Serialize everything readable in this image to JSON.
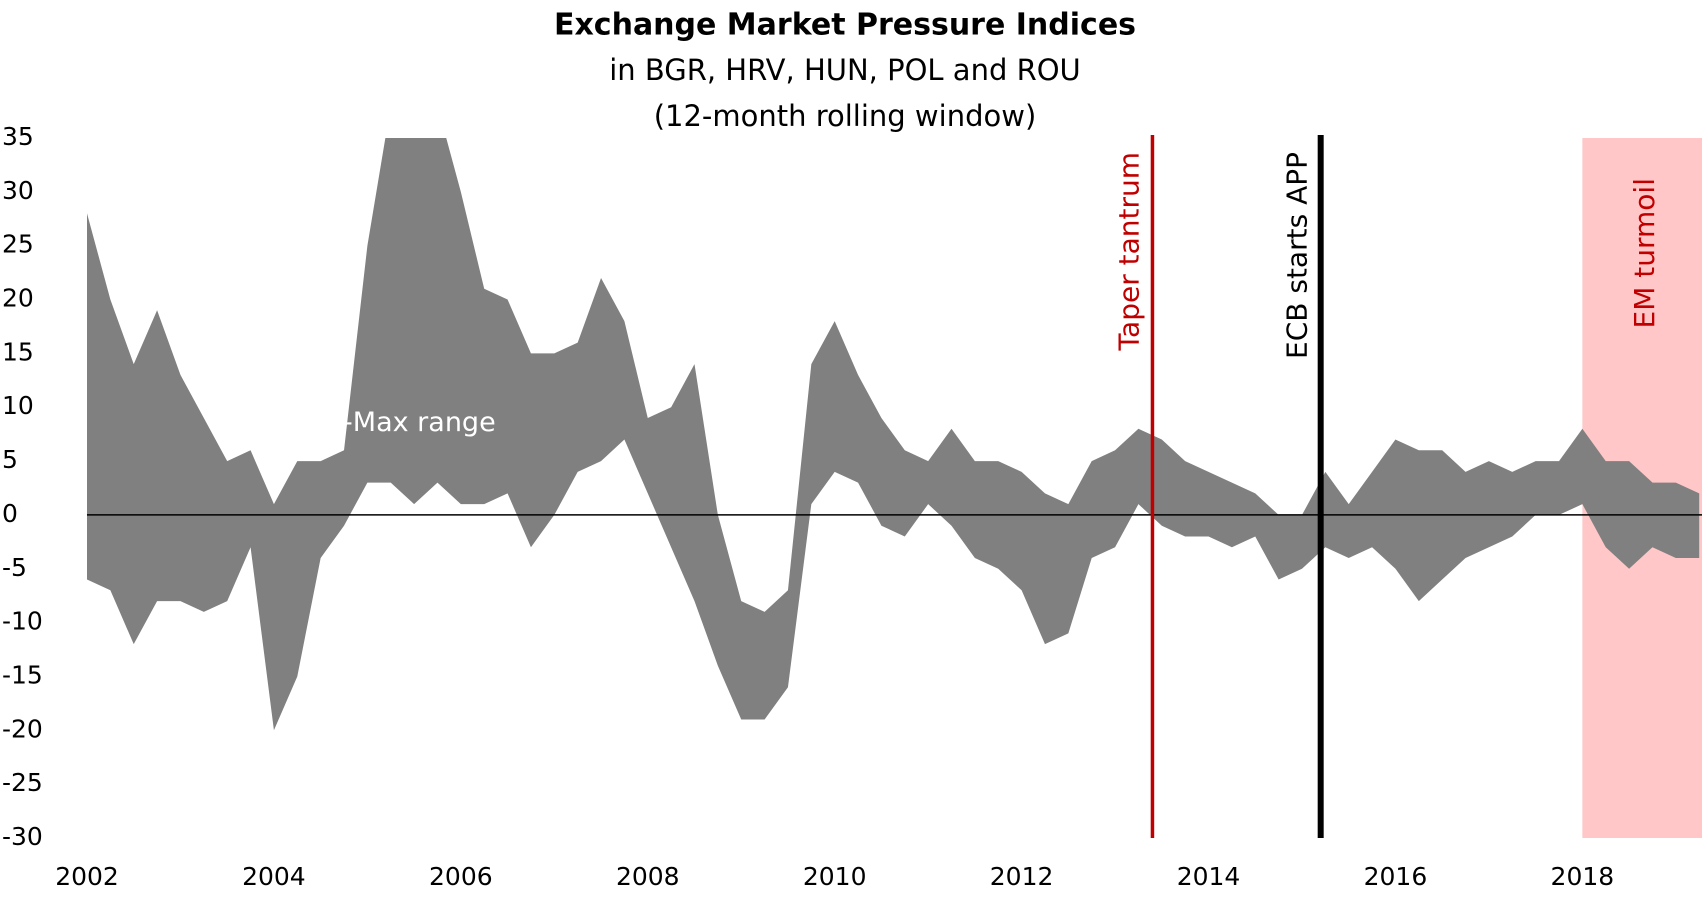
{
  "chart_data": {
    "type": "area_range",
    "title": "Exchange Market Pressure Indices",
    "subtitle": [
      "in BGR, HRV, HUN, POL and ROU",
      "(12-month rolling window)"
    ],
    "x": [
      2002,
      2002.25,
      2002.5,
      2002.75,
      2003,
      2003.25,
      2003.5,
      2003.75,
      2004,
      2004.25,
      2004.5,
      2004.75,
      2005,
      2005.25,
      2005.5,
      2005.75,
      2006,
      2006.25,
      2006.5,
      2006.75,
      2007,
      2007.25,
      2007.5,
      2007.75,
      2008,
      2008.25,
      2008.5,
      2008.75,
      2009,
      2009.25,
      2009.5,
      2009.75,
      2010,
      2010.25,
      2010.5,
      2010.75,
      2011,
      2011.25,
      2011.5,
      2011.75,
      2012,
      2012.25,
      2012.5,
      2012.75,
      2013,
      2013.25,
      2013.5,
      2013.75,
      2014,
      2014.25,
      2014.5,
      2014.75,
      2015,
      2015.25,
      2015.5,
      2015.75,
      2016,
      2016.25,
      2016.5,
      2016.75,
      2017,
      2017.25,
      2017.5,
      2017.75,
      2018,
      2018.25,
      2018.5,
      2018.75,
      2019,
      2019.25
    ],
    "series": [
      {
        "name": "Min-Max range",
        "color": "#808080",
        "upper": [
          28,
          20,
          14,
          19,
          13,
          9,
          5,
          6,
          1,
          5,
          5,
          6,
          25,
          38,
          38,
          38,
          30,
          21,
          20,
          15,
          15,
          16,
          22,
          18,
          9,
          10,
          14,
          0,
          -8,
          -9,
          -7,
          14,
          18,
          13,
          9,
          6,
          5,
          8,
          5,
          5,
          4,
          2,
          1,
          5,
          6,
          8,
          7,
          5,
          4,
          3,
          2,
          0,
          0,
          4,
          1,
          4,
          7,
          6,
          6,
          4,
          5,
          4,
          5,
          5,
          8,
          5,
          5,
          3,
          3,
          2
        ],
        "lower": [
          -6,
          -7,
          -12,
          -8,
          -8,
          -9,
          -8,
          -3,
          -20,
          -15,
          -4,
          -1,
          3,
          3,
          1,
          3,
          1,
          1,
          2,
          -3,
          0,
          4,
          5,
          7,
          2,
          -3,
          -8,
          -14,
          -19,
          -19,
          -16,
          1,
          4,
          3,
          -1,
          -2,
          1,
          -1,
          -4,
          -5,
          -7,
          -12,
          -11,
          -4,
          -3,
          1,
          -1,
          -2,
          -2,
          -3,
          -2,
          -6,
          -5,
          -3,
          -4,
          -3,
          -5,
          -8,
          -6,
          -4,
          -3,
          -2,
          0,
          0,
          1,
          -3,
          -5,
          -3,
          -4,
          -4
        ]
      }
    ],
    "annotations": [
      {
        "type": "vline",
        "x": 2013.4,
        "label": "Taper tantrum",
        "color": "#c00000"
      },
      {
        "type": "vline",
        "x": 2015.2,
        "label": "ECB starts APP",
        "color": "#000000"
      },
      {
        "type": "span",
        "x": [
          2018,
          2019.28
        ],
        "label": "EM turmoil",
        "color": "#ffc7c7",
        "text_color": "#c00000"
      }
    ],
    "xlim": [
      2002,
      2019.28
    ],
    "ylim": [
      -30,
      35
    ],
    "xticks": [
      2002,
      2004,
      2006,
      2008,
      2010,
      2012,
      2014,
      2016,
      2018
    ],
    "yticks": [
      -30,
      -25,
      -20,
      -15,
      -10,
      -5,
      0,
      5,
      10,
      15,
      20,
      25,
      30,
      35
    ],
    "grid": false
  }
}
